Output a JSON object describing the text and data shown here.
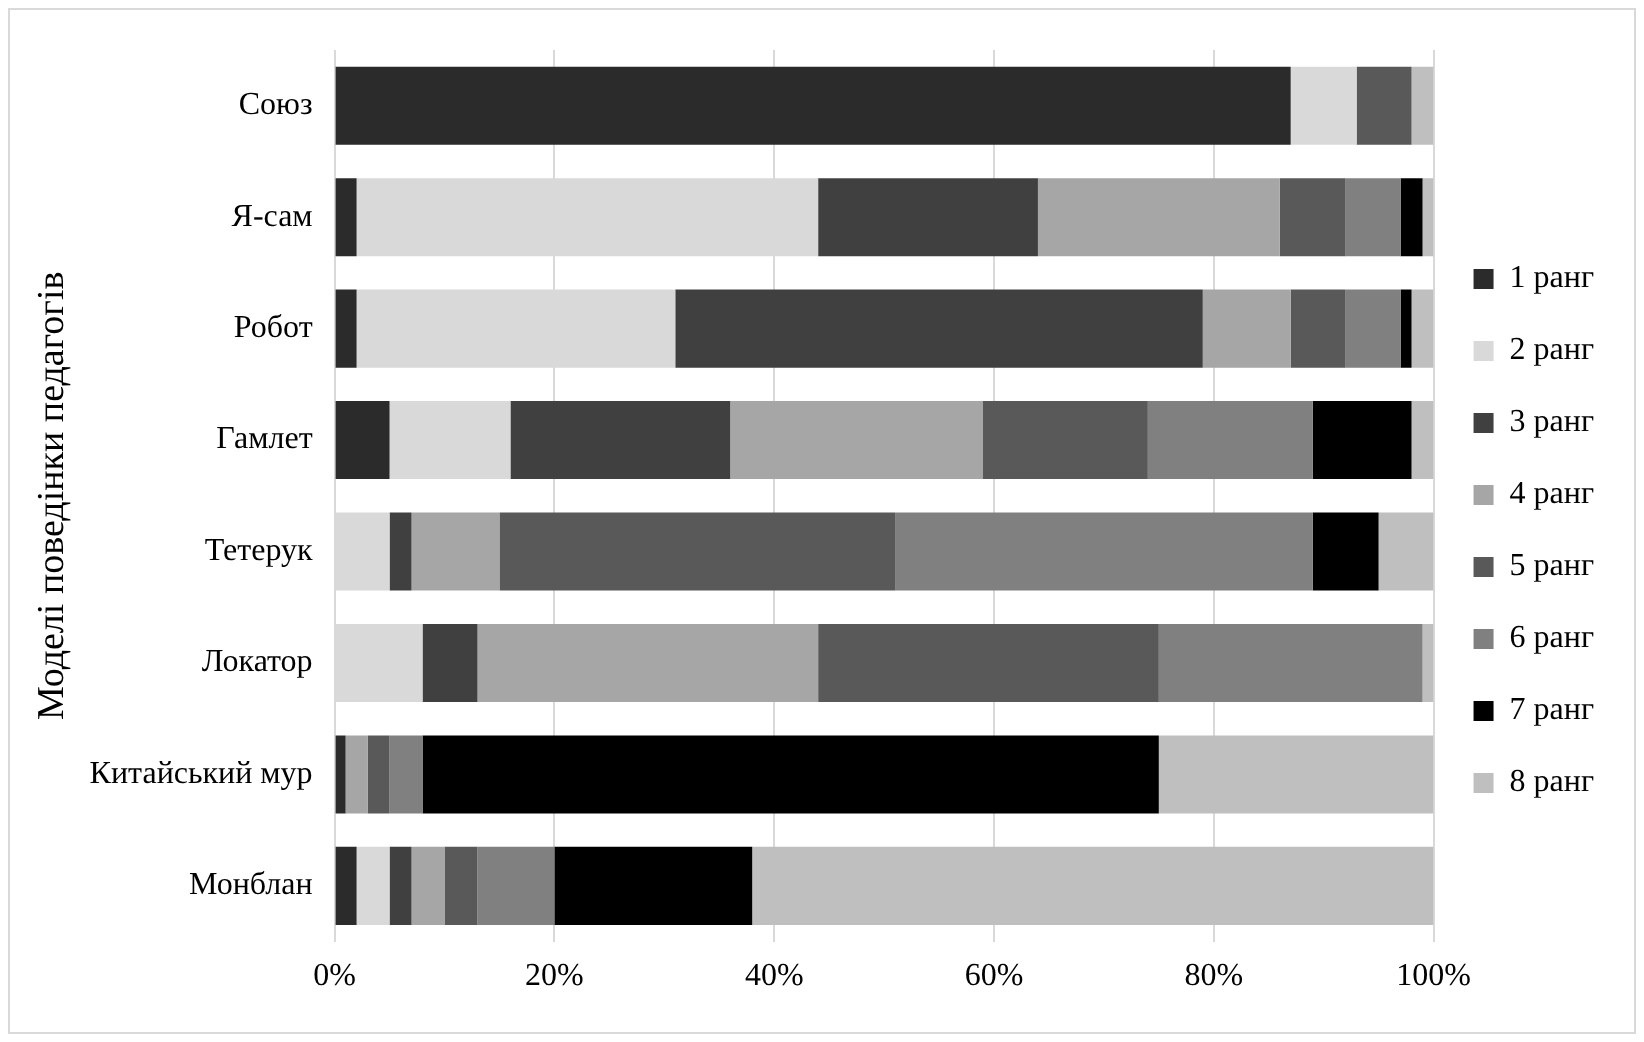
{
  "chart_data": {
    "type": "bar",
    "orientation": "horizontal",
    "stacked": true,
    "ylabel": "Моделі поведінки педагогів",
    "categories": [
      "Союз",
      "Я-сам",
      "Робот",
      "Гамлет",
      "Тетерук",
      "Локатор",
      "Китайський мур",
      "Монблан"
    ],
    "series": [
      {
        "name": "1 ранг",
        "color": "#2b2b2b",
        "values": [
          87,
          2,
          2,
          5,
          0,
          0,
          1,
          2
        ]
      },
      {
        "name": "2 ранг",
        "color": "#d9d9d9",
        "values": [
          6,
          42,
          29,
          11,
          5,
          8,
          0,
          3
        ]
      },
      {
        "name": "3 ранг",
        "color": "#404040",
        "values": [
          0,
          20,
          48,
          20,
          2,
          5,
          0,
          2
        ]
      },
      {
        "name": "4 ранг",
        "color": "#a6a6a6",
        "values": [
          0,
          22,
          8,
          23,
          8,
          31,
          2,
          3
        ]
      },
      {
        "name": "5 ранг",
        "color": "#595959",
        "values": [
          5,
          6,
          5,
          15,
          36,
          31,
          2,
          3
        ]
      },
      {
        "name": "6 ранг",
        "color": "#808080",
        "values": [
          0,
          5,
          5,
          15,
          38,
          24,
          3,
          7
        ]
      },
      {
        "name": "7 ранг",
        "color": "#000000",
        "values": [
          0,
          2,
          1,
          9,
          6,
          0,
          67,
          18
        ]
      },
      {
        "name": "8 ранг",
        "color": "#bfbfbf",
        "values": [
          2,
          1,
          2,
          2,
          5,
          1,
          25,
          62
        ]
      }
    ],
    "xlim": [
      0,
      100
    ],
    "xticks": [
      {
        "value": 0,
        "label": "0%"
      },
      {
        "value": 20,
        "label": "20%"
      },
      {
        "value": 40,
        "label": "40%"
      },
      {
        "value": 60,
        "label": "60%"
      },
      {
        "value": 80,
        "label": "80%"
      },
      {
        "value": 100,
        "label": "100%"
      }
    ],
    "grid": "x",
    "legend": "right"
  }
}
